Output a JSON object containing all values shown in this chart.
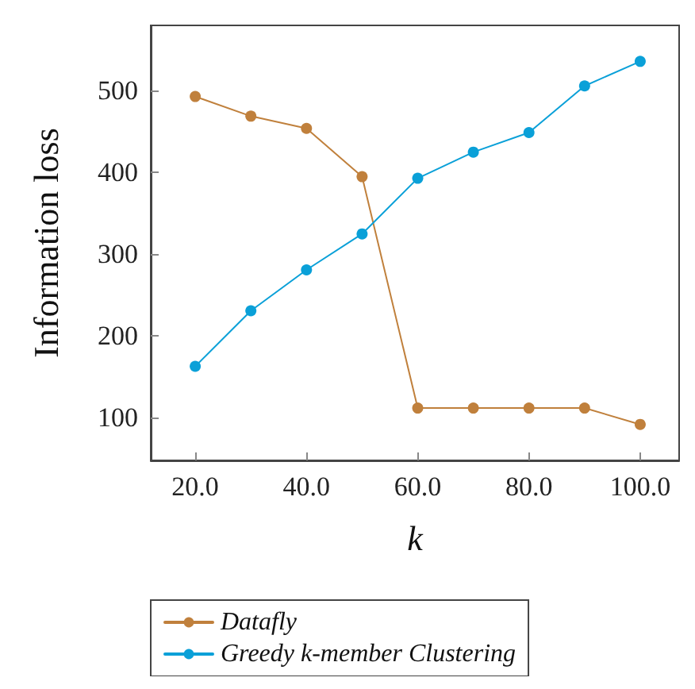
{
  "chart_data": {
    "type": "line",
    "xlabel": "k",
    "ylabel": "Information loss",
    "x": [
      20,
      30,
      40,
      50,
      60,
      70,
      80,
      90,
      100
    ],
    "series": [
      {
        "name": "Datafly",
        "color": "#c0803c",
        "values": [
          493,
          469,
          454,
          395,
          112,
          112,
          112,
          112,
          92
        ]
      },
      {
        "name": "Greedy k-member Clustering",
        "color": "#0aa0d8",
        "values": [
          163,
          231,
          281,
          325,
          393,
          425,
          449,
          506,
          536
        ]
      }
    ],
    "xlim": [
      12,
      107
    ],
    "xticks": [
      {
        "value": 20,
        "label": "20.0"
      },
      {
        "value": 40,
        "label": "40.0"
      },
      {
        "value": 60,
        "label": "60.0"
      },
      {
        "value": 80,
        "label": "80.0"
      },
      {
        "value": 100,
        "label": "100.0"
      }
    ],
    "ylim": [
      48,
      580
    ],
    "yticks": [
      100,
      200,
      300,
      400,
      500
    ],
    "grid": false,
    "legend": "bottom",
    "marker": "circle",
    "line_style": "solid"
  }
}
